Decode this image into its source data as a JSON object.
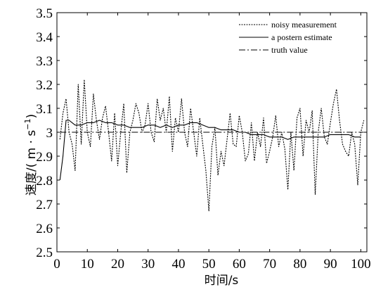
{
  "chart_data": {
    "type": "line",
    "xlabel": "时间/s",
    "ylabel": "速度/(m·s⁻¹)",
    "ylabel_parts": {
      "prefix": "速度/(",
      "unit": " m · s",
      "exp": "−1",
      "suffix": ")"
    },
    "xlim": [
      0,
      102
    ],
    "ylim": [
      2.5,
      3.5
    ],
    "x_ticks": [
      0,
      10,
      20,
      30,
      40,
      50,
      60,
      70,
      80,
      90,
      100
    ],
    "y_ticks": [
      2.5,
      2.6,
      2.7,
      2.8,
      2.9,
      3,
      3.1,
      3.2,
      3.3,
      3.4,
      3.5
    ],
    "y_tick_labels": [
      "2.5",
      "2.6",
      "2.7",
      "2.8",
      "2.9",
      "3",
      "3.1",
      "3.2",
      "3.3",
      "3.4",
      "3.5"
    ],
    "x_tick_labels": [
      "0",
      "10",
      "20",
      "30",
      "40",
      "50",
      "60",
      "70",
      "80",
      "90",
      "100"
    ],
    "grid": false,
    "legend_position": "top-right",
    "series": [
      {
        "name": "noisy measurement",
        "style": "dotted",
        "x": [
          1,
          2,
          3,
          4,
          5,
          6,
          7,
          8,
          9,
          10,
          11,
          12,
          13,
          14,
          15,
          16,
          17,
          18,
          19,
          20,
          21,
          22,
          23,
          24,
          25,
          26,
          27,
          28,
          29,
          30,
          31,
          32,
          33,
          34,
          35,
          36,
          37,
          38,
          39,
          40,
          41,
          42,
          43,
          44,
          45,
          46,
          47,
          48,
          49,
          50,
          51,
          52,
          53,
          54,
          55,
          56,
          57,
          58,
          59,
          60,
          61,
          62,
          63,
          64,
          65,
          66,
          67,
          68,
          69,
          70,
          71,
          72,
          73,
          74,
          75,
          76,
          77,
          78,
          79,
          80,
          81,
          82,
          83,
          84,
          85,
          86,
          87,
          88,
          89,
          90,
          91,
          92,
          93,
          94,
          95,
          96,
          97,
          98,
          99,
          100,
          101
        ],
        "values": [
          2.97,
          3.08,
          3.14,
          3.0,
          2.95,
          2.84,
          3.2,
          2.95,
          3.22,
          3.0,
          2.94,
          3.16,
          3.05,
          2.97,
          3.06,
          3.11,
          3.0,
          2.88,
          3.08,
          2.86,
          3.0,
          3.12,
          2.83,
          3.0,
          3.05,
          3.12,
          3.08,
          3.0,
          3.03,
          3.12,
          3.0,
          2.96,
          3.14,
          3.05,
          3.1,
          3.0,
          3.15,
          2.92,
          3.06,
          3.0,
          3.14,
          3.0,
          2.94,
          3.1,
          3.0,
          2.9,
          3.06,
          2.95,
          2.84,
          2.67,
          2.94,
          3.02,
          2.82,
          2.92,
          2.86,
          2.97,
          3.08,
          2.95,
          2.94,
          3.07,
          3.0,
          2.88,
          2.91,
          3.04,
          2.88,
          3.0,
          2.94,
          3.06,
          2.87,
          2.92,
          2.98,
          3.07,
          2.94,
          3.0,
          2.93,
          2.76,
          3.0,
          2.84,
          3.06,
          3.1,
          2.9,
          3.05,
          3.0,
          3.09,
          2.74,
          3.0,
          3.1,
          2.98,
          2.95,
          3.04,
          3.12,
          3.18,
          3.05,
          2.95,
          2.92,
          2.9,
          3.0,
          2.95,
          2.78,
          3.0,
          3.05
        ]
      },
      {
        "name": "a postern estimate",
        "style": "solid",
        "x": [
          1,
          2,
          3,
          4,
          5,
          6,
          8,
          10,
          12,
          14,
          16,
          18,
          20,
          22,
          24,
          26,
          28,
          30,
          32,
          34,
          36,
          38,
          40,
          42,
          44,
          46,
          48,
          50,
          52,
          54,
          56,
          58,
          60,
          62,
          64,
          66,
          68,
          70,
          72,
          74,
          76,
          78,
          80,
          82,
          84,
          86,
          88,
          90,
          92,
          94,
          96,
          98,
          100
        ],
        "values": [
          2.8,
          2.9,
          3.05,
          3.05,
          3.04,
          3.03,
          3.03,
          3.04,
          3.04,
          3.05,
          3.04,
          3.04,
          3.03,
          3.03,
          3.02,
          3.02,
          3.02,
          3.03,
          3.03,
          3.02,
          3.03,
          3.02,
          3.03,
          3.03,
          3.04,
          3.04,
          3.03,
          3.02,
          3.02,
          3.01,
          3.01,
          3.01,
          3.0,
          3.0,
          2.99,
          2.99,
          2.99,
          2.98,
          2.98,
          2.98,
          2.97,
          2.98,
          2.98,
          2.98,
          2.98,
          2.98,
          2.98,
          2.99,
          2.99,
          2.99,
          2.99,
          2.98,
          2.98
        ]
      },
      {
        "name": "truth value",
        "style": "dashdot",
        "x": [
          1,
          101
        ],
        "values": [
          3.0,
          3.0
        ]
      }
    ]
  },
  "colors": {
    "line": "#000000",
    "background": "#ffffff"
  }
}
